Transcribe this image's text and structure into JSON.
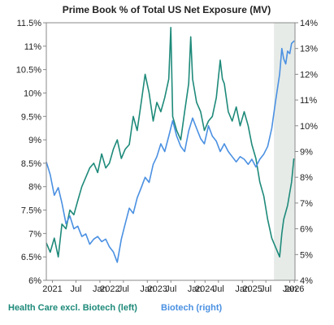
{
  "chart_data": {
    "type": "line",
    "title": "Prime Book % of Total US Net Exposure (MV)",
    "x_axis": {
      "type": "date",
      "range": [
        "2020-11-15",
        "2026-02-10"
      ],
      "tick_labels": [
        {
          "label": "2021",
          "date": "2021-01-01"
        },
        {
          "label": "Jul",
          "date": "2021-07-01"
        },
        {
          "label": "Jan",
          "date": "2022-01-01"
        },
        {
          "label": "2022",
          "date": "2022-03-20"
        },
        {
          "label": "Jul",
          "date": "2022-07-01"
        },
        {
          "label": "Jan",
          "date": "2023-01-01"
        },
        {
          "label": "2023",
          "date": "2023-03-20"
        },
        {
          "label": "Jul",
          "date": "2023-07-01"
        },
        {
          "label": "Jan",
          "date": "2024-01-01"
        },
        {
          "label": "2024",
          "date": "2024-03-20"
        },
        {
          "label": "Jul",
          "date": "2024-07-01"
        },
        {
          "label": "Jan",
          "date": "2025-01-01"
        },
        {
          "label": "2025",
          "date": "2025-03-20"
        },
        {
          "label": "Jul",
          "date": "2025-07-01"
        },
        {
          "label": "Jan",
          "date": "2026-01-01"
        },
        {
          "label": "2026",
          "date": "2026-02-05"
        }
      ]
    },
    "y_left": {
      "range": [
        6,
        11.5
      ],
      "ticks": [
        6,
        6.5,
        7,
        7.5,
        8,
        8.5,
        9,
        9.5,
        10,
        10.5,
        11,
        11.5
      ],
      "tick_labels": [
        "6%",
        "6.5%",
        "7%",
        "7.5%",
        "8%",
        "8.5%",
        "9%",
        "9.5%",
        "10%",
        "10.5%",
        "11%",
        "11.5%"
      ]
    },
    "y_right": {
      "range": [
        4,
        14
      ],
      "ticks": [
        4,
        5,
        6,
        7,
        8,
        9,
        10,
        11,
        12,
        13,
        14
      ],
      "tick_labels": [
        "4%",
        "5%",
        "6%",
        "7%",
        "8%",
        "9%",
        "10%",
        "11%",
        "12%",
        "13%",
        "14%"
      ]
    },
    "shaded_region": {
      "start": "2025-09-01",
      "end": "2026-02-10",
      "color": "#e6ebe8"
    },
    "grid": false,
    "legend_position": "bottom",
    "series": [
      {
        "name": "Health Care excl. Biotech (left)",
        "axis": "left",
        "color": "#1e8a7a",
        "points": [
          [
            "2020-11-15",
            6.8
          ],
          [
            "2020-12-15",
            6.6
          ],
          [
            "2021-01-15",
            6.9
          ],
          [
            "2021-02-15",
            6.5
          ],
          [
            "2021-03-15",
            7.2
          ],
          [
            "2021-04-15",
            7.1
          ],
          [
            "2021-05-15",
            7.5
          ],
          [
            "2021-06-15",
            7.4
          ],
          [
            "2021-07-15",
            7.7
          ],
          [
            "2021-08-15",
            8.0
          ],
          [
            "2021-09-15",
            8.2
          ],
          [
            "2021-10-15",
            8.4
          ],
          [
            "2021-11-15",
            8.5
          ],
          [
            "2021-12-15",
            8.3
          ],
          [
            "2022-01-15",
            8.7
          ],
          [
            "2022-02-15",
            8.4
          ],
          [
            "2022-03-15",
            8.5
          ],
          [
            "2022-04-15",
            8.8
          ],
          [
            "2022-05-15",
            9.0
          ],
          [
            "2022-06-15",
            8.6
          ],
          [
            "2022-07-15",
            8.8
          ],
          [
            "2022-08-15",
            8.9
          ],
          [
            "2022-09-15",
            9.5
          ],
          [
            "2022-10-15",
            9.2
          ],
          [
            "2022-11-15",
            9.8
          ],
          [
            "2022-12-15",
            10.4
          ],
          [
            "2023-01-15",
            10.0
          ],
          [
            "2023-02-15",
            9.4
          ],
          [
            "2023-03-15",
            9.8
          ],
          [
            "2023-04-15",
            9.6
          ],
          [
            "2023-05-15",
            9.9
          ],
          [
            "2023-06-15",
            10.3
          ],
          [
            "2023-07-01",
            11.4
          ],
          [
            "2023-07-15",
            9.5
          ],
          [
            "2023-08-15",
            9.2
          ],
          [
            "2023-09-15",
            9.0
          ],
          [
            "2023-10-15",
            9.6
          ],
          [
            "2023-11-15",
            10.2
          ],
          [
            "2023-12-01",
            11.2
          ],
          [
            "2023-12-15",
            10.3
          ],
          [
            "2024-01-15",
            9.8
          ],
          [
            "2024-02-15",
            9.6
          ],
          [
            "2024-03-15",
            9.2
          ],
          [
            "2024-04-15",
            9.4
          ],
          [
            "2024-05-15",
            9.5
          ],
          [
            "2024-06-15",
            9.9
          ],
          [
            "2024-07-15",
            10.7
          ],
          [
            "2024-08-01",
            10.3
          ],
          [
            "2024-08-15",
            10.2
          ],
          [
            "2024-09-15",
            9.6
          ],
          [
            "2024-10-15",
            9.4
          ],
          [
            "2024-11-15",
            9.7
          ],
          [
            "2024-12-15",
            9.3
          ],
          [
            "2025-01-15",
            9.6
          ],
          [
            "2025-02-15",
            9.3
          ],
          [
            "2025-03-15",
            8.9
          ],
          [
            "2025-04-15",
            8.6
          ],
          [
            "2025-05-15",
            8.1
          ],
          [
            "2025-06-15",
            7.8
          ],
          [
            "2025-07-15",
            7.3
          ],
          [
            "2025-08-15",
            6.9
          ],
          [
            "2025-09-15",
            6.7
          ],
          [
            "2025-10-15",
            6.5
          ],
          [
            "2025-11-01",
            7.0
          ],
          [
            "2025-11-15",
            7.3
          ],
          [
            "2025-12-15",
            7.6
          ],
          [
            "2026-01-15",
            8.1
          ],
          [
            "2026-02-01",
            8.6
          ]
        ]
      },
      {
        "name": "Biotech (right)",
        "axis": "right",
        "color": "#4a90e2",
        "points": [
          [
            "2020-11-15",
            8.6
          ],
          [
            "2020-12-15",
            8.1
          ],
          [
            "2021-01-15",
            7.3
          ],
          [
            "2021-02-15",
            7.6
          ],
          [
            "2021-03-15",
            7.0
          ],
          [
            "2021-04-15",
            6.2
          ],
          [
            "2021-05-15",
            6.5
          ],
          [
            "2021-06-15",
            6.0
          ],
          [
            "2021-07-15",
            6.1
          ],
          [
            "2021-08-15",
            5.7
          ],
          [
            "2021-09-15",
            5.8
          ],
          [
            "2021-10-15",
            5.4
          ],
          [
            "2021-11-15",
            5.6
          ],
          [
            "2021-12-15",
            5.7
          ],
          [
            "2022-01-15",
            5.5
          ],
          [
            "2022-02-15",
            5.6
          ],
          [
            "2022-03-15",
            5.3
          ],
          [
            "2022-04-15",
            5.1
          ],
          [
            "2022-05-15",
            4.7
          ],
          [
            "2022-06-15",
            5.6
          ],
          [
            "2022-07-15",
            6.2
          ],
          [
            "2022-08-15",
            6.8
          ],
          [
            "2022-09-15",
            6.6
          ],
          [
            "2022-10-15",
            7.2
          ],
          [
            "2022-11-15",
            7.6
          ],
          [
            "2022-12-15",
            8.0
          ],
          [
            "2023-01-15",
            7.8
          ],
          [
            "2023-02-15",
            8.5
          ],
          [
            "2023-03-15",
            8.8
          ],
          [
            "2023-04-15",
            9.3
          ],
          [
            "2023-05-15",
            9.0
          ],
          [
            "2023-06-15",
            9.6
          ],
          [
            "2023-07-15",
            10.2
          ],
          [
            "2023-08-15",
            9.6
          ],
          [
            "2023-09-15",
            9.2
          ],
          [
            "2023-10-15",
            9.0
          ],
          [
            "2023-11-15",
            9.8
          ],
          [
            "2023-12-15",
            10.3
          ],
          [
            "2024-01-15",
            9.9
          ],
          [
            "2024-02-15",
            9.5
          ],
          [
            "2024-03-15",
            9.3
          ],
          [
            "2024-04-15",
            10.0
          ],
          [
            "2024-05-15",
            9.6
          ],
          [
            "2024-06-15",
            9.4
          ],
          [
            "2024-07-15",
            9.0
          ],
          [
            "2024-08-15",
            9.3
          ],
          [
            "2024-09-15",
            9.0
          ],
          [
            "2024-10-15",
            8.8
          ],
          [
            "2024-11-15",
            8.6
          ],
          [
            "2024-12-15",
            8.8
          ],
          [
            "2025-01-15",
            8.7
          ],
          [
            "2025-02-15",
            8.5
          ],
          [
            "2025-03-15",
            8.7
          ],
          [
            "2025-04-15",
            8.4
          ],
          [
            "2025-05-15",
            8.7
          ],
          [
            "2025-06-15",
            8.9
          ],
          [
            "2025-07-15",
            9.2
          ],
          [
            "2025-08-15",
            9.9
          ],
          [
            "2025-09-15",
            11.0
          ],
          [
            "2025-10-15",
            12.0
          ],
          [
            "2025-11-01",
            13.0
          ],
          [
            "2025-11-15",
            12.6
          ],
          [
            "2025-12-01",
            12.4
          ],
          [
            "2025-12-15",
            12.9
          ],
          [
            "2026-01-01",
            12.8
          ],
          [
            "2026-01-15",
            13.2
          ],
          [
            "2026-02-05",
            13.3
          ]
        ]
      }
    ]
  }
}
